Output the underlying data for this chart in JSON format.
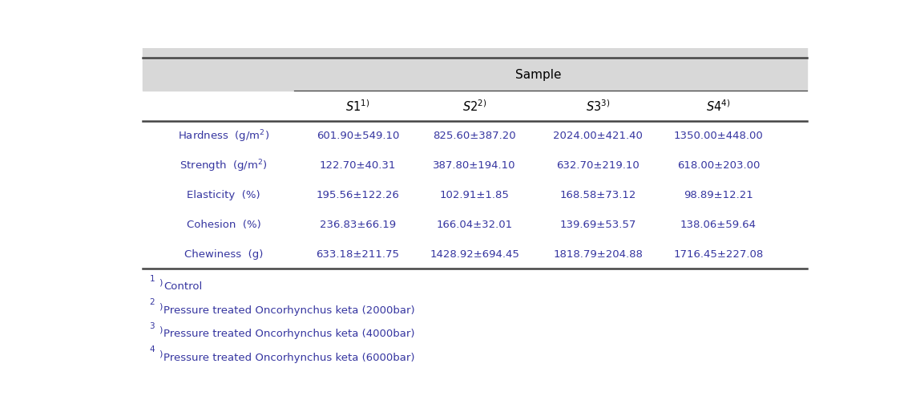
{
  "title": "Sample",
  "col_headers": [
    "$S1^{1)}$",
    "$S2^{2)}$",
    "$S3^{3)}$",
    "$S4^{4)}$"
  ],
  "row_labels": [
    "Hardness  (g/m$^2$)",
    "Strength  (g/m$^2$)",
    "Elasticity  (%)",
    "Cohesion  (%)",
    "Chewiness  (g)"
  ],
  "data": [
    [
      "601.90±549.10",
      "825.60±387.20",
      "2024.00±421.40",
      "1350.00±448.00"
    ],
    [
      "122.70±40.31",
      "387.80±194.10",
      "632.70±219.10",
      "618.00±203.00"
    ],
    [
      "195.56±122.26",
      "102.91±1.85",
      "168.58±73.12",
      "98.89±12.21"
    ],
    [
      "236.83±66.19",
      "166.04±32.01",
      "139.69±53.57",
      "138.06±59.64"
    ],
    [
      "633.18±211.75",
      "1428.92±694.45",
      "1818.79±204.88",
      "1716.45±227.08"
    ]
  ],
  "footnote_sups": [
    "1)",
    "2)",
    "3)",
    "4)"
  ],
  "footnote_texts": [
    "Control",
    "Pressure treated Oncorhynchus keta (2000bar)",
    "Pressure treated Oncorhynchus keta (4000bar)",
    "Pressure treated Oncorhynchus keta (6000bar)"
  ],
  "text_color": "#3535a0",
  "line_color": "#444444",
  "header_bg": "#d8d8d8",
  "white": "#ffffff"
}
